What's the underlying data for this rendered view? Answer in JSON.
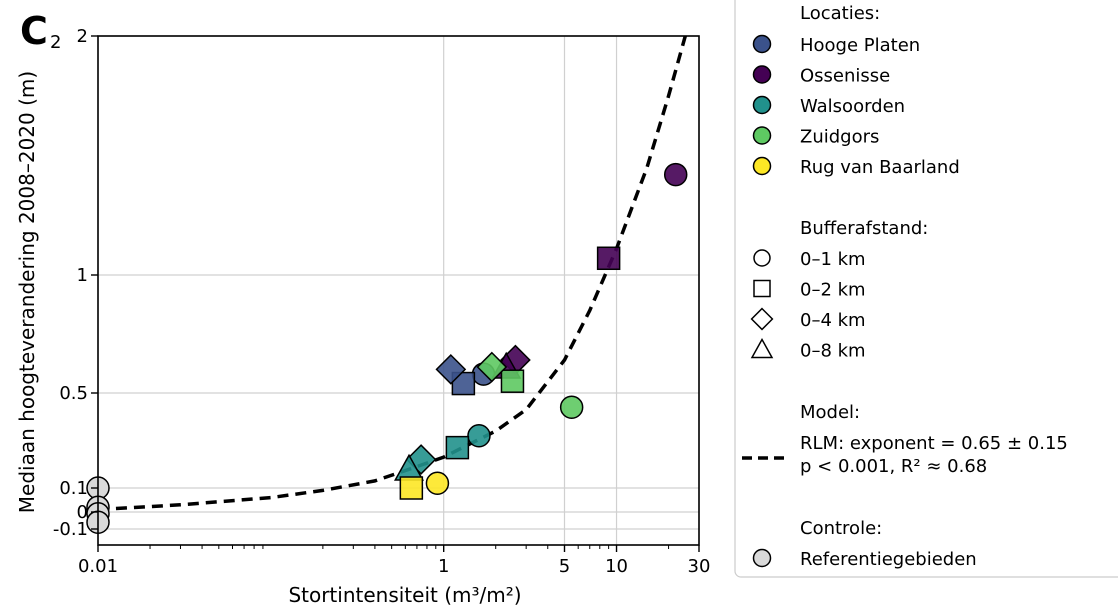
{
  "panel_label": "C",
  "panel_sub": "2",
  "chart_data": {
    "type": "scatter",
    "xlabel": "Stortintensiteit (m³/m²)",
    "ylabel": "Mediaan hoogteverandering 2008–2020 (m)",
    "x_scale": "log",
    "y_scale": "nonlinear (tick labels -0.1, 0, 0.1, 0.5, 1, 2)",
    "xlim": [
      0.01,
      30
    ],
    "ylim": [
      -0.1,
      2
    ],
    "x_ticks": [
      {
        "v": 0.01,
        "label": "0.01"
      },
      {
        "v": 1,
        "label": "1"
      },
      {
        "v": 5,
        "label": "5"
      },
      {
        "v": 10,
        "label": "10"
      },
      {
        "v": 30,
        "label": "30"
      }
    ],
    "y_ticks": [
      {
        "v": -0.1,
        "label": "-0.1"
      },
      {
        "v": 0,
        "label": "0"
      },
      {
        "v": 0.1,
        "label": "0.1"
      },
      {
        "v": 0.5,
        "label": "0.5"
      },
      {
        "v": 1,
        "label": "1"
      },
      {
        "v": 2,
        "label": "2"
      }
    ],
    "grid": true,
    "series": [
      {
        "name": "Hooge Platen",
        "color": "#3b528b",
        "points": [
          {
            "x": 1.7,
            "y": 0.58,
            "buffer": "0–1 km"
          },
          {
            "x": 1.3,
            "y": 0.54,
            "buffer": "0–2 km"
          },
          {
            "x": 1.1,
            "y": 0.6,
            "buffer": "0–4 km"
          }
        ]
      },
      {
        "name": "Ossenisse",
        "color": "#440154",
        "points": [
          {
            "x": 22,
            "y": 1.42,
            "buffer": "0–1 km"
          },
          {
            "x": 9,
            "y": 1.07,
            "buffer": "0–2 km"
          },
          {
            "x": 2.6,
            "y": 0.64,
            "buffer": "0–4 km"
          },
          {
            "x": 2.3,
            "y": 0.61,
            "buffer": "0–8 km"
          }
        ]
      },
      {
        "name": "Walsoorden",
        "color": "#21918c",
        "points": [
          {
            "x": 1.6,
            "y": 0.32,
            "buffer": "0–1 km"
          },
          {
            "x": 1.2,
            "y": 0.27,
            "buffer": "0–2 km"
          },
          {
            "x": 0.74,
            "y": 0.22,
            "buffer": "0–4 km"
          },
          {
            "x": 0.63,
            "y": 0.18,
            "buffer": "0–8 km"
          }
        ]
      },
      {
        "name": "Zuidgors",
        "color": "#5ec962",
        "points": [
          {
            "x": 5.5,
            "y": 0.44,
            "buffer": "0–1 km"
          },
          {
            "x": 2.5,
            "y": 0.55,
            "buffer": "0–2 km"
          },
          {
            "x": 1.9,
            "y": 0.61,
            "buffer": "0–4 km"
          }
        ]
      },
      {
        "name": "Rug van Baarland",
        "color": "#fde725",
        "points": [
          {
            "x": 0.92,
            "y": 0.12,
            "buffer": "0–1 km"
          },
          {
            "x": 0.65,
            "y": 0.1,
            "buffer": "0–2 km"
          }
        ]
      },
      {
        "name": "Referentiegebieden",
        "color": "#d9d9d9",
        "points": [
          {
            "x": 0.01,
            "y": 0.1,
            "buffer": "0–1 km"
          },
          {
            "x": 0.01,
            "y": 0.02,
            "buffer": "0–1 km"
          },
          {
            "x": 0.01,
            "y": -0.01,
            "buffer": "0–1 km"
          },
          {
            "x": 0.01,
            "y": -0.06,
            "buffer": "0–1 km"
          }
        ]
      }
    ],
    "model_curve": {
      "name": "RLM: exponent = 0.65 ± 0.15",
      "stats": "p < 0.001, R² ≈ 0.68",
      "points": [
        [
          0.01,
          0.01
        ],
        [
          0.03,
          0.03
        ],
        [
          0.1,
          0.06
        ],
        [
          0.2,
          0.09
        ],
        [
          0.4,
          0.13
        ],
        [
          0.7,
          0.19
        ],
        [
          1,
          0.23
        ],
        [
          2,
          0.34
        ],
        [
          3,
          0.43
        ],
        [
          5,
          0.64
        ],
        [
          7,
          0.85
        ],
        [
          10,
          1.11
        ],
        [
          15,
          1.45
        ],
        [
          20,
          1.75
        ],
        [
          25,
          2.0
        ]
      ]
    }
  },
  "legend": {
    "locations_title": "Locaties:",
    "locations": [
      {
        "label": "Hooge Platen",
        "color": "#3b528b"
      },
      {
        "label": "Ossenisse",
        "color": "#440154"
      },
      {
        "label": "Walsoorden",
        "color": "#21918c"
      },
      {
        "label": "Zuidgors",
        "color": "#5ec962"
      },
      {
        "label": "Rug van Baarland",
        "color": "#fde725"
      }
    ],
    "buffer_title": "Bufferafstand:",
    "buffers": [
      {
        "label": "0–1 km",
        "shape": "circle"
      },
      {
        "label": "0–2 km",
        "shape": "square"
      },
      {
        "label": "0–4 km",
        "shape": "diamond"
      },
      {
        "label": "0–8 km",
        "shape": "triangle"
      }
    ],
    "model_title": "Model:",
    "model_line1": "RLM: exponent = 0.65 ± 0.15",
    "model_line2": "p < 0.001, R² ≈ 0.68",
    "control_title": "Controle:",
    "control_label": "Referentiegebieden",
    "control_color": "#d9d9d9"
  }
}
